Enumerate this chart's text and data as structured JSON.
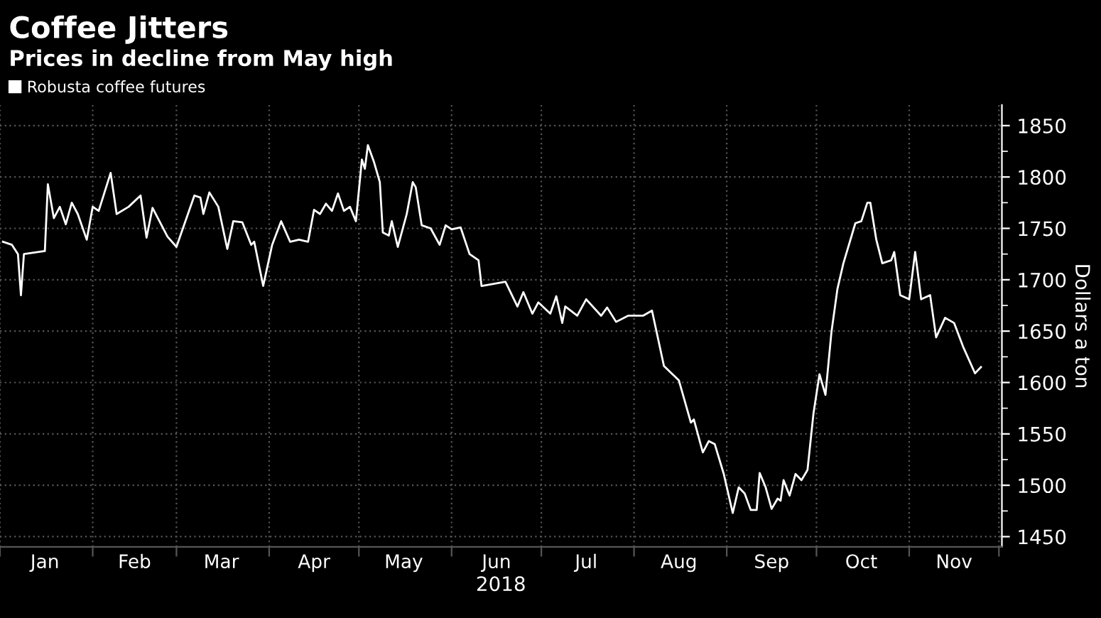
{
  "chart_data": {
    "type": "line",
    "title": "Coffee Jitters",
    "subtitle": "Prices in decline from May high",
    "xlabel": "2018",
    "ylabel": "Dollars a ton",
    "x": [
      "2018-01-02",
      "2018-01-05",
      "2018-01-07",
      "2018-01-08",
      "2018-01-09",
      "2018-01-16",
      "2018-01-17",
      "2018-01-19",
      "2018-01-21",
      "2018-01-23",
      "2018-01-25",
      "2018-01-27",
      "2018-01-30",
      "2018-02-01",
      "2018-02-03",
      "2018-02-07",
      "2018-02-09",
      "2018-02-13",
      "2018-02-17",
      "2018-02-19",
      "2018-02-21",
      "2018-02-26",
      "2018-03-01",
      "2018-03-07",
      "2018-03-09",
      "2018-03-10",
      "2018-03-12",
      "2018-03-15",
      "2018-03-18",
      "2018-03-20",
      "2018-03-23",
      "2018-03-26",
      "2018-03-27",
      "2018-03-30",
      "2018-04-02",
      "2018-04-05",
      "2018-04-08",
      "2018-04-11",
      "2018-04-14",
      "2018-04-16",
      "2018-04-18",
      "2018-04-20",
      "2018-04-22",
      "2018-04-24",
      "2018-04-26",
      "2018-04-28",
      "2018-04-30",
      "2018-05-02",
      "2018-05-03",
      "2018-05-04",
      "2018-05-06",
      "2018-05-08",
      "2018-05-09",
      "2018-05-11",
      "2018-05-12",
      "2018-05-14",
      "2018-05-17",
      "2018-05-19",
      "2018-05-20",
      "2018-05-22",
      "2018-05-25",
      "2018-05-28",
      "2018-05-30",
      "2018-06-01",
      "2018-06-04",
      "2018-06-07",
      "2018-06-10",
      "2018-06-11",
      "2018-06-19",
      "2018-06-23",
      "2018-06-25",
      "2018-06-28",
      "2018-06-30",
      "2018-07-04",
      "2018-07-06",
      "2018-07-08",
      "2018-07-09",
      "2018-07-13",
      "2018-07-16",
      "2018-07-21",
      "2018-07-23",
      "2018-07-26",
      "2018-07-30",
      "2018-08-04",
      "2018-08-07",
      "2018-08-11",
      "2018-08-16",
      "2018-08-20",
      "2018-08-21",
      "2018-08-24",
      "2018-08-26",
      "2018-08-28",
      "2018-08-31",
      "2018-09-03",
      "2018-09-05",
      "2018-09-07",
      "2018-09-09",
      "2018-09-11",
      "2018-09-12",
      "2018-09-14",
      "2018-09-16",
      "2018-09-18",
      "2018-09-19",
      "2018-09-20",
      "2018-09-22",
      "2018-09-24",
      "2018-09-26",
      "2018-09-28",
      "2018-09-30",
      "2018-10-02",
      "2018-10-04",
      "2018-10-06",
      "2018-10-08",
      "2018-10-10",
      "2018-10-14",
      "2018-10-16",
      "2018-10-18",
      "2018-10-19",
      "2018-10-21",
      "2018-10-23",
      "2018-10-26",
      "2018-10-27",
      "2018-10-29",
      "2018-11-01",
      "2018-11-03",
      "2018-11-05",
      "2018-11-08",
      "2018-11-10",
      "2018-11-13",
      "2018-11-16",
      "2018-11-19",
      "2018-11-23",
      "2018-11-25"
    ],
    "series": [
      {
        "name": "Robusta coffee futures",
        "color": "#ffffff",
        "values": [
          1737,
          1734,
          1725,
          1685,
          1725,
          1728,
          1793,
          1760,
          1771,
          1754,
          1775,
          1764,
          1739,
          1771,
          1767,
          1804,
          1764,
          1771,
          1782,
          1741,
          1770,
          1742,
          1732,
          1782,
          1780,
          1764,
          1785,
          1771,
          1730,
          1757,
          1756,
          1734,
          1737,
          1694,
          1734,
          1757,
          1737,
          1739,
          1737,
          1768,
          1764,
          1774,
          1767,
          1784,
          1767,
          1771,
          1757,
          1817,
          1808,
          1831,
          1815,
          1795,
          1746,
          1743,
          1757,
          1732,
          1764,
          1795,
          1790,
          1753,
          1750,
          1734,
          1753,
          1749,
          1751,
          1725,
          1719,
          1694,
          1698,
          1674,
          1688,
          1667,
          1678,
          1667,
          1684,
          1658,
          1674,
          1665,
          1681,
          1665,
          1673,
          1659,
          1665,
          1665,
          1670,
          1616,
          1602,
          1561,
          1564,
          1532,
          1543,
          1540,
          1511,
          1473,
          1498,
          1492,
          1476,
          1476,
          1512,
          1498,
          1477,
          1487,
          1485,
          1505,
          1490,
          1511,
          1505,
          1515,
          1570,
          1608,
          1588,
          1649,
          1691,
          1716,
          1755,
          1757,
          1775,
          1775,
          1739,
          1716,
          1719,
          1727,
          1685,
          1681,
          1727,
          1681,
          1685,
          1644,
          1663,
          1658,
          1635,
          1609,
          1615
        ]
      }
    ],
    "xlim": [
      "2018-01-01",
      "2018-12-02"
    ],
    "xticks": [
      {
        "value": "2018-01-01",
        "label": null
      },
      {
        "value": "2018-01-16",
        "label": "Jan"
      },
      {
        "value": "2018-02-01",
        "label": null
      },
      {
        "value": "2018-02-15",
        "label": "Feb"
      },
      {
        "value": "2018-03-01",
        "label": null
      },
      {
        "value": "2018-03-16",
        "label": "Mar"
      },
      {
        "value": "2018-04-01",
        "label": null
      },
      {
        "value": "2018-04-16",
        "label": "Apr"
      },
      {
        "value": "2018-05-01",
        "label": null
      },
      {
        "value": "2018-05-16",
        "label": "May"
      },
      {
        "value": "2018-06-01",
        "label": null
      },
      {
        "value": "2018-06-16",
        "label": "Jun"
      },
      {
        "value": "2018-07-01",
        "label": null
      },
      {
        "value": "2018-07-16",
        "label": "Jul"
      },
      {
        "value": "2018-08-01",
        "label": null
      },
      {
        "value": "2018-08-16",
        "label": "Aug"
      },
      {
        "value": "2018-09-01",
        "label": null
      },
      {
        "value": "2018-09-16",
        "label": "Sep"
      },
      {
        "value": "2018-10-01",
        "label": null
      },
      {
        "value": "2018-10-16",
        "label": "Oct"
      },
      {
        "value": "2018-11-01",
        "label": null
      },
      {
        "value": "2018-11-16",
        "label": "Nov"
      },
      {
        "value": "2018-12-01",
        "label": null
      }
    ],
    "ylim": [
      1440,
      1870
    ],
    "yticks": [
      1450,
      1500,
      1550,
      1600,
      1650,
      1700,
      1750,
      1800,
      1850
    ],
    "grid": true,
    "legend": "top left",
    "marker": "none",
    "line_style": "solid"
  }
}
